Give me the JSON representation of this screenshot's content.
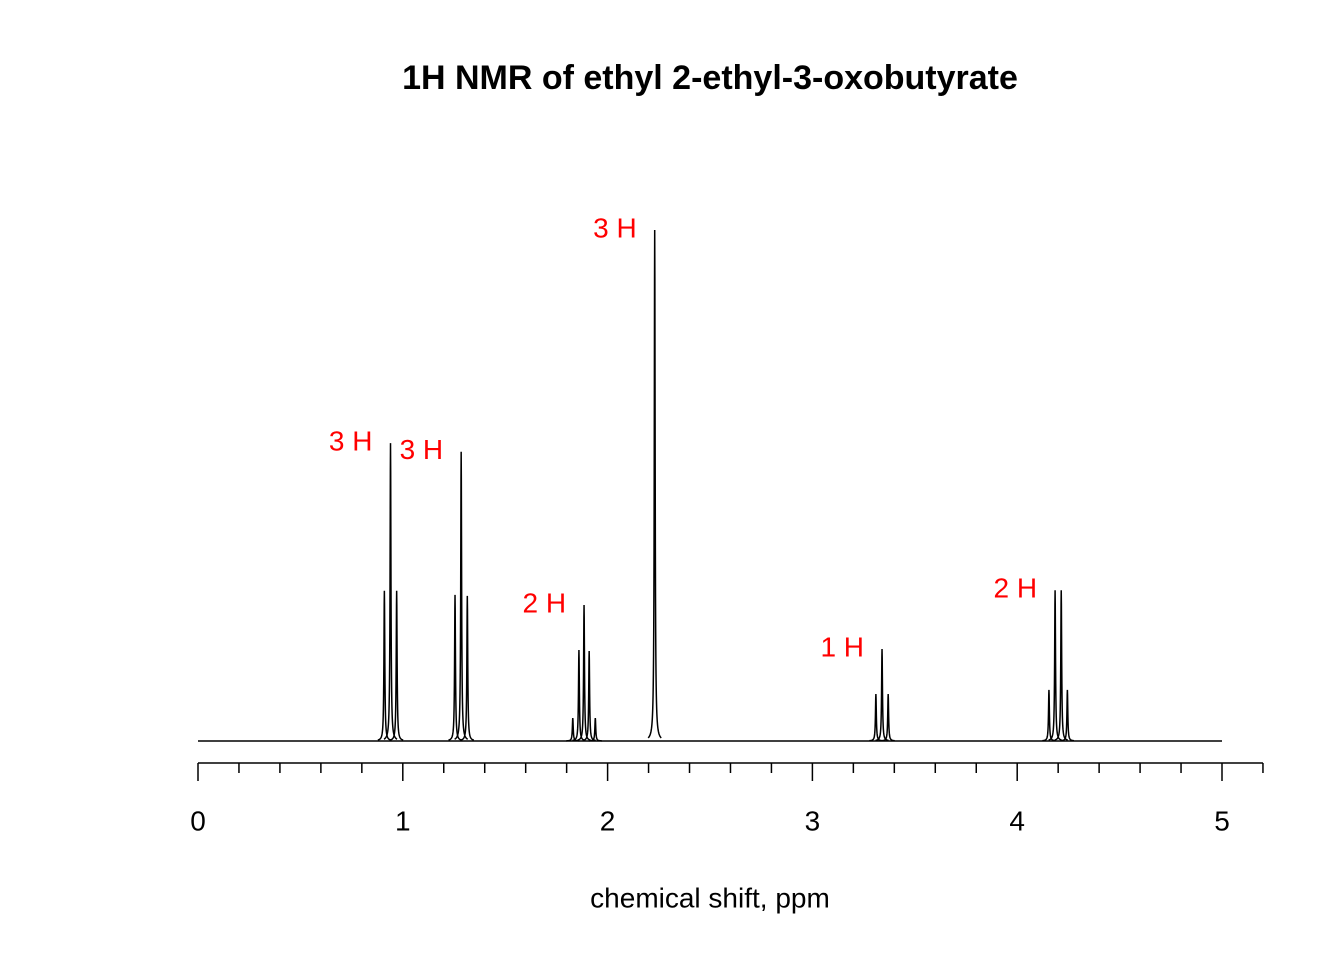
{
  "chart_data": {
    "type": "nmr",
    "title": "1H NMR of ethyl 2-ethyl-3-oxobutyrate",
    "x_label": "chemical shift, ppm",
    "xlim": [
      0,
      5.2
    ],
    "xticks": [
      0,
      1,
      2,
      3,
      4,
      5
    ],
    "minor_xticks": [
      0.2,
      0.4,
      0.6,
      0.8,
      1.2,
      1.4,
      1.6,
      1.8,
      2.2,
      2.4,
      2.6,
      2.8,
      3.2,
      3.4,
      3.6,
      3.8,
      4.2,
      4.4,
      4.6,
      4.8,
      5.2
    ],
    "ylim": [
      0,
      100
    ],
    "line_color": "#000000",
    "label_color": "#ff0000",
    "multiplets": [
      {
        "label": "3 H",
        "peaks": [
          {
            "shift": 0.91,
            "height": 29.4
          },
          {
            "shift": 0.94,
            "height": 58.3
          },
          {
            "shift": 0.97,
            "height": 29.4
          }
        ]
      },
      {
        "label": "3 H",
        "peaks": [
          {
            "shift": 1.255,
            "height": 28.6
          },
          {
            "shift": 1.285,
            "height": 56.6
          },
          {
            "shift": 1.315,
            "height": 28.4
          }
        ]
      },
      {
        "label": "2 H",
        "peaks": [
          {
            "shift": 1.83,
            "height": 4.5
          },
          {
            "shift": 1.86,
            "height": 17.8
          },
          {
            "shift": 1.885,
            "height": 26.6
          },
          {
            "shift": 1.91,
            "height": 17.6
          },
          {
            "shift": 1.94,
            "height": 4.5
          }
        ]
      },
      {
        "label": "3 H",
        "peaks": [
          {
            "shift": 2.23,
            "height": 100
          }
        ]
      },
      {
        "label": "1 H",
        "peaks": [
          {
            "shift": 3.31,
            "height": 9.2
          },
          {
            "shift": 3.34,
            "height": 18
          },
          {
            "shift": 3.37,
            "height": 9.2
          }
        ]
      },
      {
        "label": "2 H",
        "peaks": [
          {
            "shift": 4.155,
            "height": 10
          },
          {
            "shift": 4.185,
            "height": 29.5
          },
          {
            "shift": 4.215,
            "height": 29.5
          },
          {
            "shift": 4.245,
            "height": 10
          }
        ]
      }
    ]
  }
}
